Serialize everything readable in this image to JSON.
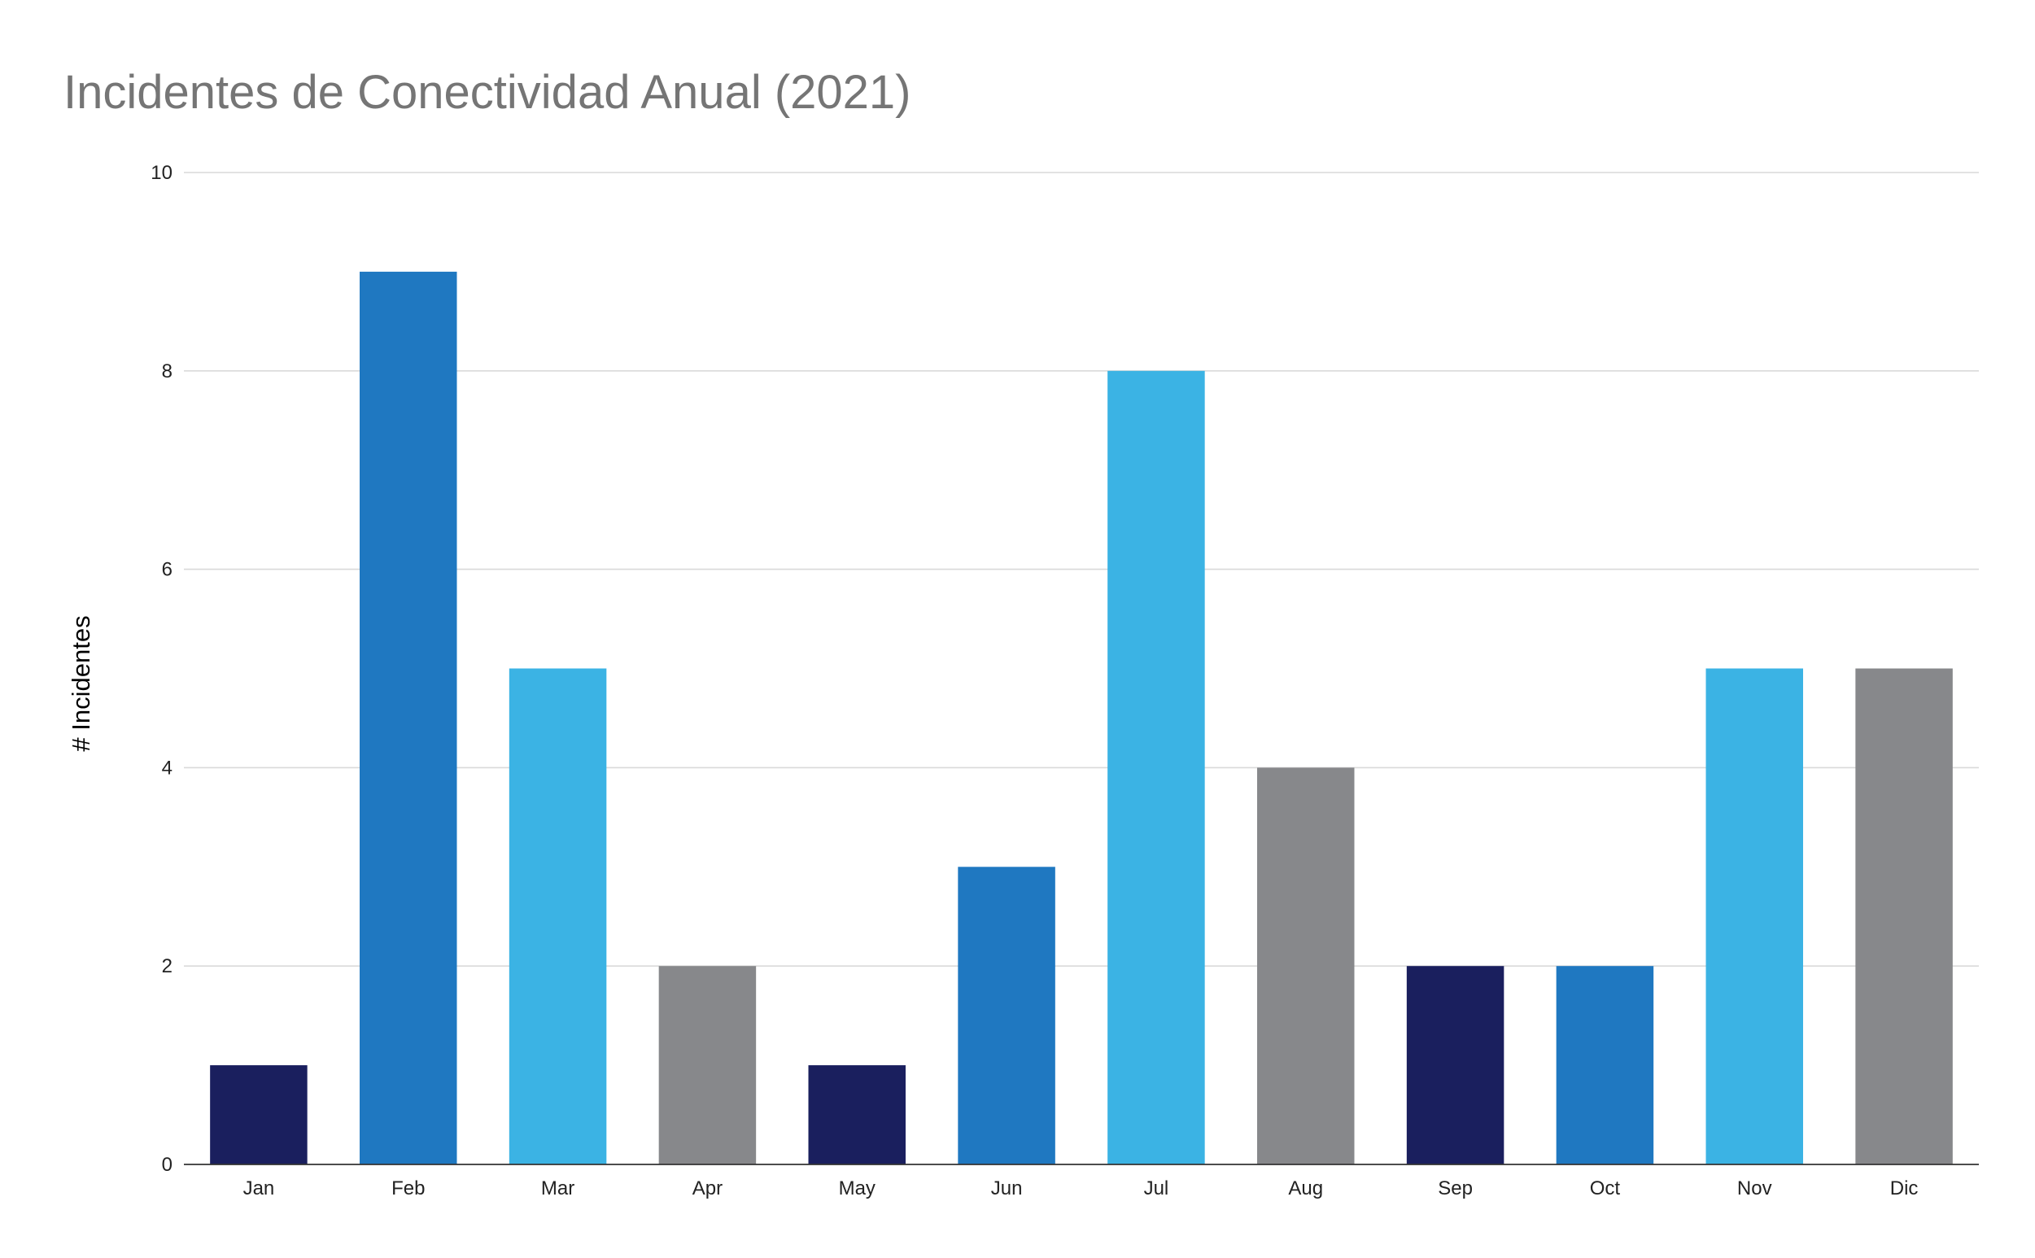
{
  "chart_data": {
    "type": "bar",
    "title": "Incidentes de Conectividad Anual (2021)",
    "xlabel": "",
    "ylabel": "# Incidentes",
    "categories": [
      "Jan",
      "Feb",
      "Mar",
      "Apr",
      "May",
      "Jun",
      "Jul",
      "Aug",
      "Sep",
      "Oct",
      "Nov",
      "Dic"
    ],
    "values": [
      1,
      9,
      5,
      2,
      1,
      3,
      8,
      4,
      2,
      2,
      5,
      5
    ],
    "ylim": [
      0,
      10
    ],
    "yticks": [
      0,
      2,
      4,
      6,
      8,
      10
    ],
    "grid": true,
    "legend": "none",
    "bar_colors": [
      "#1a1f5e",
      "#1f78c1",
      "#3bb3e4",
      "#87888b",
      "#1a1f5e",
      "#1f78c1",
      "#3bb3e4",
      "#87888b",
      "#1a1f5e",
      "#1f78c1",
      "#3bb3e4",
      "#87888b"
    ]
  }
}
